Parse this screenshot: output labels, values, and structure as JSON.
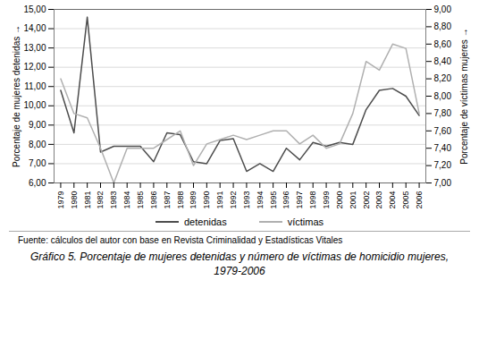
{
  "chart_data": {
    "type": "line",
    "title": "Gráfico 5. Porcentaje de mujeres detenidas y número de víctimas de homicidio mujeres, 1979-2006",
    "annotations": [
      "Fuente: cálculos del autor con base en Revista Criminalidad y Estadísticas Vitales"
    ],
    "x": [
      1979,
      1980,
      1981,
      1982,
      1983,
      1984,
      1985,
      1986,
      1987,
      1988,
      1989,
      1990,
      1991,
      1992,
      1993,
      1994,
      1995,
      1996,
      1997,
      1998,
      1999,
      2000,
      2001,
      2002,
      2003,
      2004,
      2005,
      2006
    ],
    "series": [
      {
        "name": "detenidas",
        "color": "#4d4d4d",
        "values": [
          10.8,
          8.6,
          14.6,
          7.6,
          7.9,
          7.9,
          7.9,
          7.1,
          8.6,
          8.5,
          7.1,
          7.0,
          8.2,
          8.3,
          6.6,
          7.0,
          6.6,
          7.8,
          7.2,
          8.1,
          7.9,
          8.1,
          8.0,
          9.8,
          10.8,
          10.9,
          10.5,
          9.5
        ]
      },
      {
        "name": "víctimas",
        "color": "#b0b0b0",
        "axis": "y2",
        "values": [
          8.2,
          7.8,
          7.75,
          7.4,
          7.0,
          7.4,
          7.4,
          7.4,
          7.5,
          7.6,
          7.2,
          7.45,
          7.5,
          7.55,
          7.5,
          7.55,
          7.6,
          7.6,
          7.45,
          7.55,
          7.4,
          7.45,
          7.8,
          8.4,
          8.3,
          8.6,
          8.55,
          7.8
        ]
      }
    ],
    "xlim": [
      1978.5,
      2006.5
    ],
    "xticks": [
      1979,
      1980,
      1981,
      1982,
      1983,
      1984,
      1985,
      1986,
      1987,
      1988,
      1989,
      1990,
      1991,
      1992,
      1993,
      1994,
      1995,
      1996,
      1997,
      1998,
      1999,
      2000,
      2001,
      2002,
      2003,
      2004,
      2005,
      2006
    ],
    "ylim": [
      6.0,
      15.0
    ],
    "yticks": [
      {
        "value": 6.0,
        "label": "6,00"
      },
      {
        "value": 7.0,
        "label": "7,00"
      },
      {
        "value": 8.0,
        "label": "8,00"
      },
      {
        "value": 9.0,
        "label": "9,00"
      },
      {
        "value": 10.0,
        "label": "10,00"
      },
      {
        "value": 11.0,
        "label": "11,00"
      },
      {
        "value": 12.0,
        "label": "12,00"
      },
      {
        "value": 13.0,
        "label": "13,00"
      },
      {
        "value": 14.0,
        "label": "14,00"
      },
      {
        "value": 15.0,
        "label": "15,00"
      }
    ],
    "y2lim": [
      7.0,
      9.0
    ],
    "y2ticks": [
      {
        "value": 7.0,
        "label": "7,00"
      },
      {
        "value": 7.2,
        "label": "7,20"
      },
      {
        "value": 7.4,
        "label": "7,40"
      },
      {
        "value": 7.6,
        "label": "7,60"
      },
      {
        "value": 7.8,
        "label": "7,80"
      },
      {
        "value": 8.0,
        "label": "8,00"
      },
      {
        "value": 8.2,
        "label": "8,20"
      },
      {
        "value": 8.4,
        "label": "8,40"
      },
      {
        "value": 8.6,
        "label": "8,60"
      },
      {
        "value": 8.8,
        "label": "8,80"
      },
      {
        "value": 9.0,
        "label": "9,00"
      }
    ],
    "ylabel": "Porcentaje de mujeres detenidas",
    "y2label": "Porcentaje de víctimas mujeres",
    "grid": true,
    "legend": "bottom"
  }
}
